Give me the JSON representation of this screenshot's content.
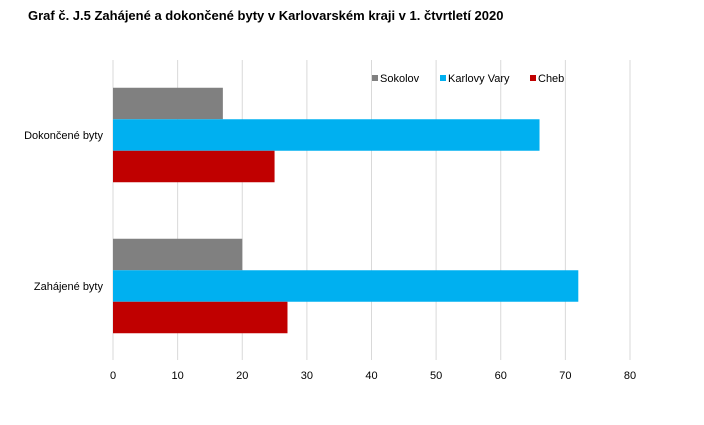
{
  "chart_data": {
    "type": "bar",
    "orientation": "horizontal",
    "title": "Graf č. J.5 Zahájené a dokončené byty v Karlovarském kraji v 1. čtvrtletí 2020",
    "categories": [
      "Dokončené  byty",
      "Zahájené byty"
    ],
    "series": [
      {
        "name": "Sokolov",
        "color": "#808080",
        "values": [
          17,
          20
        ]
      },
      {
        "name": "Karlovy Vary",
        "color": "#00b0f0",
        "values": [
          66,
          72
        ]
      },
      {
        "name": "Cheb",
        "color": "#c00000",
        "values": [
          25,
          27
        ]
      }
    ],
    "xlim": [
      0,
      80
    ],
    "xticks": [
      "0",
      "10",
      "20",
      "30",
      "40",
      "50",
      "60",
      "70",
      "80"
    ],
    "grid": true,
    "legend": "top-right"
  }
}
